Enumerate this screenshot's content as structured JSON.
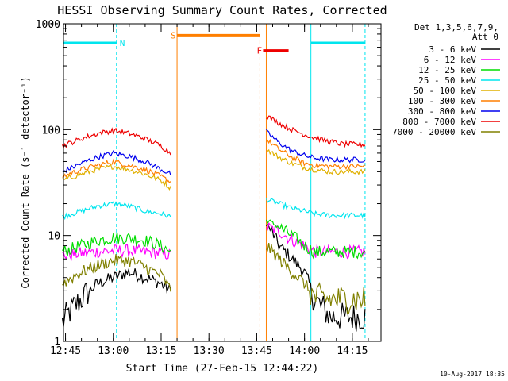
{
  "chart_data": {
    "type": "line",
    "title": "HESSI Observing Summary Count Rates, Corrected",
    "xlabel": "Start Time (27-Feb-15 12:44:22)",
    "ylabel": "Corrected Count Rate (s⁻¹ detector⁻¹)",
    "x_ticks": [
      "12:45",
      "13:00",
      "13:15",
      "13:30",
      "13:45",
      "14:00",
      "14:15"
    ],
    "y_ticks": [
      "1",
      "10",
      "100",
      "1000"
    ],
    "yscale": "log",
    "ylim": [
      1,
      1000
    ],
    "xlim": [
      "12:44:22",
      "14:24:00"
    ],
    "legend_position": "right",
    "legend_header": [
      "Det 1,3,5,6,7,9,",
      "Att 0"
    ],
    "date_stamp": "10-Aug-2017 18:35",
    "flags": [
      {
        "label": "N",
        "color": "#00e5ee",
        "start": "12:44:22",
        "end": "13:01",
        "level": 660
      },
      {
        "label": "S",
        "color": "#ff7f00",
        "start": "13:20",
        "end": "13:46",
        "level": 780
      },
      {
        "label": "F",
        "color": "#ee0000",
        "start": "13:47",
        "end": "13:55",
        "level": 560
      },
      {
        "label": "",
        "color": "#00e5ee",
        "start": "14:02",
        "end": "14:19",
        "level": 660
      }
    ],
    "vertical_markers": [
      {
        "time": "12:44:22",
        "color": "#00e5ee",
        "style": "solid"
      },
      {
        "time": "13:01",
        "color": "#00e5ee",
        "style": "dashed"
      },
      {
        "time": "13:20",
        "color": "#ff7f00",
        "style": "solid"
      },
      {
        "time": "13:46",
        "color": "#ff7f00",
        "style": "dashed"
      },
      {
        "time": "13:48",
        "color": "#ff7f00",
        "style": "solid"
      },
      {
        "time": "14:02",
        "color": "#00e5ee",
        "style": "solid"
      },
      {
        "time": "14:19",
        "color": "#00e5ee",
        "style": "dashed"
      }
    ],
    "series": [
      {
        "name": "3 - 6 keV",
        "color": "#000000",
        "segments": [
          {
            "x": [
              "12:44",
              "12:50",
              "12:55",
              "13:00",
              "13:05",
              "13:10",
              "13:15",
              "13:18"
            ],
            "y": [
              1.5,
              2.5,
              3.5,
              4.0,
              4.5,
              4.0,
              3.5,
              3.0
            ]
          },
          {
            "x": [
              "13:48",
              "13:52",
              "13:56",
              "14:00",
              "14:03",
              "14:08",
              "14:12",
              "14:19"
            ],
            "y": [
              13,
              8,
              6,
              4.5,
              2.5,
              1.7,
              1.7,
              1.7
            ]
          }
        ]
      },
      {
        "name": "6 - 12 keV",
        "color": "#ff00ff",
        "segments": [
          {
            "x": [
              "12:44",
              "12:50",
              "12:55",
              "13:00",
              "13:05",
              "13:10",
              "13:15",
              "13:18"
            ],
            "y": [
              6.5,
              6.8,
              7.0,
              7.2,
              7.2,
              7.0,
              6.8,
              6.5
            ]
          },
          {
            "x": [
              "13:48",
              "13:52",
              "13:56",
              "14:00",
              "14:03",
              "14:08",
              "14:12",
              "14:19"
            ],
            "y": [
              12,
              11,
              9,
              8,
              7,
              7,
              7,
              7
            ]
          }
        ]
      },
      {
        "name": "12 - 25 keV",
        "color": "#00dd00",
        "segments": [
          {
            "x": [
              "12:44",
              "12:50",
              "12:55",
              "13:00",
              "13:05",
              "13:10",
              "13:15",
              "13:18"
            ],
            "y": [
              7,
              8,
              9,
              9.5,
              9.5,
              9,
              8,
              7
            ]
          },
          {
            "x": [
              "13:48",
              "13:52",
              "13:56",
              "14:00",
              "14:03",
              "14:08",
              "14:12",
              "14:19"
            ],
            "y": [
              14,
              12,
              10,
              8,
              7,
              7,
              7,
              7
            ]
          }
        ]
      },
      {
        "name": "25 - 50 keV",
        "color": "#00e5ee",
        "segments": [
          {
            "x": [
              "12:44",
              "12:50",
              "12:55",
              "13:00",
              "13:05",
              "13:10",
              "13:15",
              "13:18"
            ],
            "y": [
              15,
              17,
              19,
              20,
              19,
              17,
              16,
              15
            ]
          },
          {
            "x": [
              "13:48",
              "13:52",
              "13:56",
              "14:00",
              "14:03",
              "14:08",
              "14:12",
              "14:19"
            ],
            "y": [
              22,
              20,
              18,
              17,
              16,
              15.5,
              15.5,
              15.5
            ]
          }
        ]
      },
      {
        "name": "50 - 100 keV",
        "color": "#e0b000",
        "segments": [
          {
            "x": [
              "12:44",
              "12:50",
              "12:55",
              "13:00",
              "13:05",
              "13:10",
              "13:15",
              "13:18"
            ],
            "y": [
              33,
              38,
              42,
              45,
              42,
              38,
              33,
              28
            ]
          },
          {
            "x": [
              "13:48",
              "13:52",
              "13:56",
              "14:00",
              "14:03",
              "14:08",
              "14:12",
              "14:19"
            ],
            "y": [
              65,
              55,
              48,
              44,
              42,
              40,
              40,
              40
            ]
          }
        ]
      },
      {
        "name": "100 - 300 keV",
        "color": "#ff7f00",
        "segments": [
          {
            "x": [
              "12:44",
              "12:50",
              "12:55",
              "13:00",
              "13:05",
              "13:10",
              "13:15",
              "13:18"
            ],
            "y": [
              36,
              42,
              46,
              50,
              46,
              42,
              36,
              32
            ]
          },
          {
            "x": [
              "13:48",
              "13:52",
              "13:56",
              "14:00",
              "14:03",
              "14:08",
              "14:12",
              "14:19"
            ],
            "y": [
              80,
              65,
              55,
              48,
              46,
              45,
              45,
              45
            ]
          }
        ]
      },
      {
        "name": "300 - 800 keV",
        "color": "#0000ee",
        "segments": [
          {
            "x": [
              "12:44",
              "12:50",
              "12:55",
              "13:00",
              "13:05",
              "13:10",
              "13:15",
              "13:18"
            ],
            "y": [
              40,
              48,
              55,
              60,
              56,
              50,
              42,
              38
            ]
          },
          {
            "x": [
              "13:48",
              "13:52",
              "13:56",
              "14:00",
              "14:03",
              "14:08",
              "14:12",
              "14:19"
            ],
            "y": [
              95,
              75,
              63,
              57,
              54,
              52,
              52,
              52
            ]
          }
        ]
      },
      {
        "name": "800 - 7000 keV",
        "color": "#ee0000",
        "segments": [
          {
            "x": [
              "12:44",
              "12:50",
              "12:55",
              "13:00",
              "13:05",
              "13:10",
              "13:15",
              "13:18"
            ],
            "y": [
              70,
              82,
              92,
              98,
              92,
              82,
              70,
              60
            ]
          },
          {
            "x": [
              "13:48",
              "13:52",
              "13:56",
              "14:00",
              "14:03",
              "14:08",
              "14:12",
              "14:19"
            ],
            "y": [
              135,
              115,
              100,
              90,
              84,
              77,
              73,
              72
            ]
          }
        ]
      },
      {
        "name": "7000 - 20000 keV",
        "color": "#808000",
        "segments": [
          {
            "x": [
              "12:44",
              "12:50",
              "12:55",
              "13:00",
              "13:05",
              "13:10",
              "13:15",
              "13:18"
            ],
            "y": [
              3.5,
              4.5,
              5.2,
              5.8,
              5.8,
              5.0,
              4.2,
              3.0
            ]
          },
          {
            "x": [
              "13:48",
              "13:52",
              "13:56",
              "14:00",
              "14:03",
              "14:08",
              "14:12",
              "14:19"
            ],
            "y": [
              8,
              6,
              4.5,
              3.5,
              2.6,
              2.5,
              2.5,
              2.5
            ]
          }
        ]
      }
    ]
  }
}
